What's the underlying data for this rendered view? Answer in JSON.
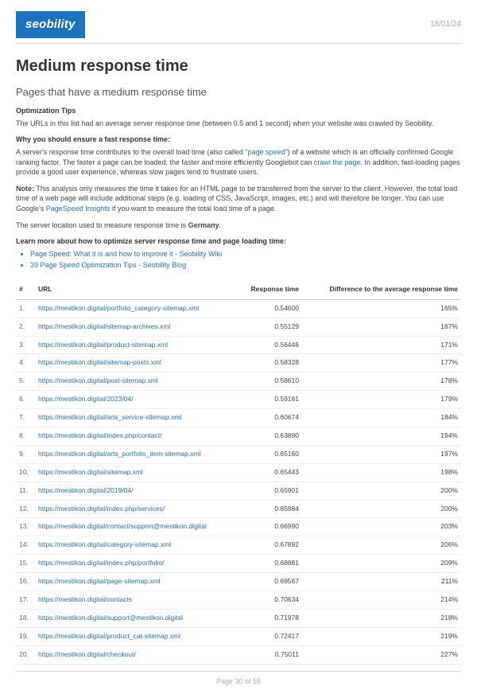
{
  "header": {
    "logo_text": "seobility",
    "date": "18/01/24"
  },
  "title": "Medium response time",
  "subtitle": "Pages that have a medium response time",
  "tips_label": "Optimization Tips",
  "tips_text": "The URLs in this list had an average server response time (between 0.5 and 1 second) when your website was crawled by Seobility.",
  "why_label": "Why you should ensure a fast response time:",
  "why_part1": "A server's response time contributes to the overall load time (also called \"",
  "why_link1": "page speed",
  "why_part2": "\") of a website which is an officially confirmed Google ranking factor. The faster a page can be loaded, the faster and more efficiently Googlebot can ",
  "why_link2": "crawl the page",
  "why_part3": ". In addition, fast-loading pages provide a good user experience, whereas slow pages tend to frustrate users.",
  "note_label": "Note:",
  "note_part1": " This analysis only measures the time it takes for an HTML page to be transferred from the server to the client. However, the total load time of a web page will include additional steps (e.g. loading of CSS, JavaScript, images, etc.) and will therefore be longer. You can use Google's ",
  "note_link": "PageSpeed Insights",
  "note_part2": " if you want to measure the total load time of a page.",
  "location_part1": "The server location used to measure response time is ",
  "location_bold": "Germany",
  "location_part2": ".",
  "learn_label": "Learn more about how to optimize server response time and page loading time:",
  "bullets": [
    "Page Speed: What it is and how to improve it - Seobility Wiki",
    "39 Page Speed Optimization Tips - Seobility Blog"
  ],
  "table": {
    "columns": [
      "#",
      "URL",
      "Response time",
      "Difference to the average response time"
    ],
    "rows": [
      [
        "1.",
        "https://mestikon.digital/portfolio_category-sitemap.xml",
        "0.54600",
        "165%"
      ],
      [
        "2.",
        "https://mestikon.digital/sitemap-archives.xml",
        "0.55129",
        "167%"
      ],
      [
        "3.",
        "https://mestikon.digital/product-sitemap.xml",
        "0.56446",
        "171%"
      ],
      [
        "4.",
        "https://mestikon.digital/sitemap-posts.xml",
        "0.58328",
        "177%"
      ],
      [
        "5.",
        "https://mestikon.digital/post-sitemap.xml",
        "0.58610",
        "178%"
      ],
      [
        "6.",
        "https://mestikon.digital/2023/04/",
        "0.59161",
        "179%"
      ],
      [
        "7.",
        "https://mestikon.digital/arts_service-sitemap.xml",
        "0.60674",
        "184%"
      ],
      [
        "8.",
        "https://mestikon.digital/index.php/contact/",
        "0.63890",
        "194%"
      ],
      [
        "9.",
        "https://mestikon.digital/arts_portfolio_item-sitemap.xml",
        "0.65160",
        "197%"
      ],
      [
        "10.",
        "https://mestikon.digital/sitemap.xml",
        "0.65443",
        "198%"
      ],
      [
        "11.",
        "https://mestikon.digital/2019/04/",
        "0.65901",
        "200%"
      ],
      [
        "12.",
        "https://mestikon.digital/index.php/services/",
        "0.65984",
        "200%"
      ],
      [
        "13.",
        "https://mestikon.digital/contact/support@mestikon.digital",
        "0.66990",
        "203%"
      ],
      [
        "14.",
        "https://mestikon.digital/category-sitemap.xml",
        "0.67892",
        "206%"
      ],
      [
        "15.",
        "https://mestikon.digital/index.php/portfolio/",
        "0.68881",
        "209%"
      ],
      [
        "16.",
        "https://mestikon.digital/page-sitemap.xml",
        "0.69567",
        "211%"
      ],
      [
        "17.",
        "https://mestikon.digital/contacts",
        "0.70634",
        "214%"
      ],
      [
        "18.",
        "https://mestikon.digital/support@mestikon.digital",
        "0.71978",
        "218%"
      ],
      [
        "19.",
        "https://mestikon.digital/product_cat-sitemap.xml",
        "0.72417",
        "219%"
      ],
      [
        "20.",
        "https://mestikon.digital/checkout/",
        "0.75011",
        "227%"
      ]
    ]
  },
  "footer": "Page 30 of 55",
  "colors": {
    "brand": "#1e73be",
    "link": "#2a6eb5",
    "text": "#333333",
    "muted": "#aaaaaa",
    "border": "#d9d9d9",
    "row_border": "#eeeeee",
    "background": "#ffffff"
  }
}
